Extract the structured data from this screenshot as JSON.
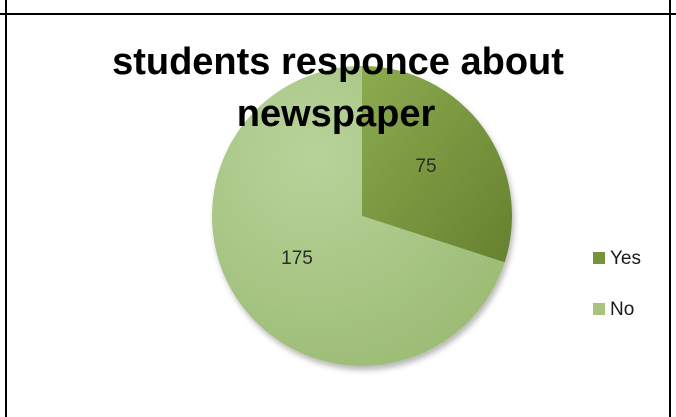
{
  "chart_data": {
    "type": "pie",
    "title_lines": [
      "students responce about",
      "newspaper"
    ],
    "categories": [
      "Yes",
      "No"
    ],
    "values": [
      75,
      175
    ],
    "data_labels": [
      "75",
      "175"
    ],
    "colors": [
      "#77933c",
      "#a6c480"
    ],
    "legend_position": "right",
    "start_angle": "12 o'clock",
    "direction": "clockwise"
  },
  "legend": {
    "items": [
      {
        "label": "Yes",
        "color": "#77933c"
      },
      {
        "label": "No",
        "color": "#a6c480"
      }
    ]
  }
}
